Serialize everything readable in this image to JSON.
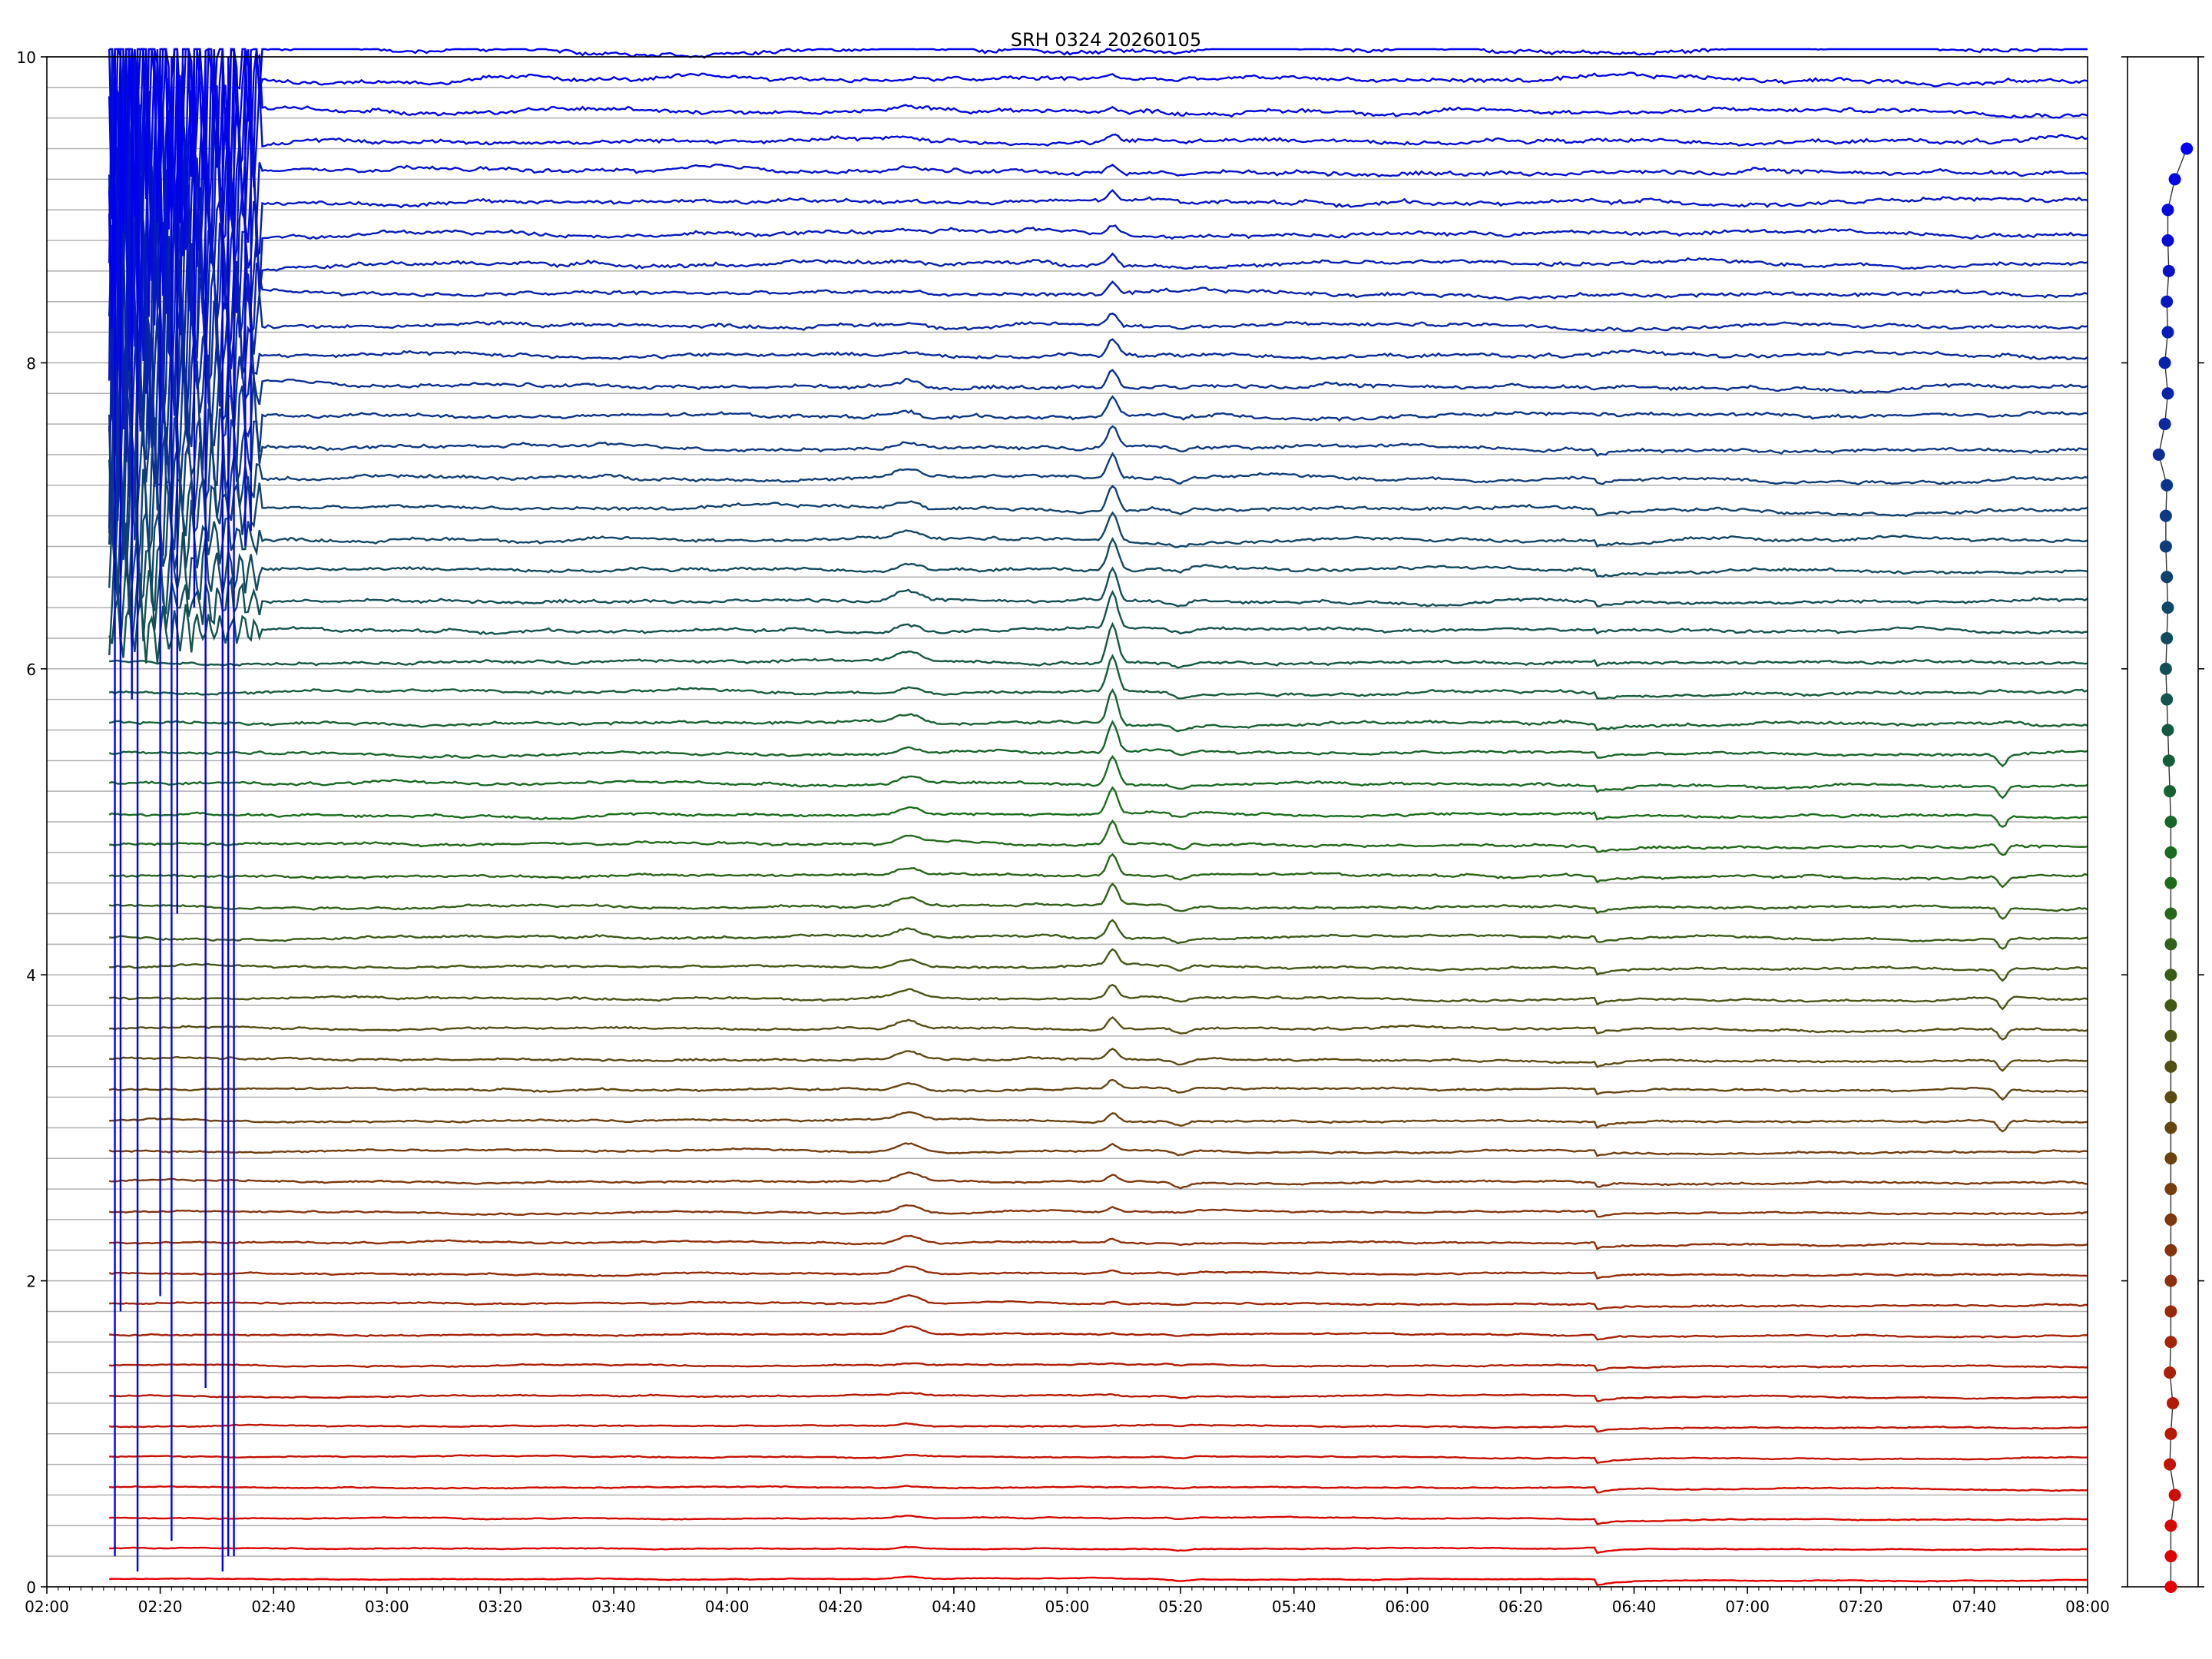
{
  "chart_data": [
    {
      "type": "line",
      "title": "SRH 0324 20260105",
      "xlabel": "",
      "ylabel": "",
      "xlim": [
        "02:00",
        "08:00"
      ],
      "ylim": [
        0,
        10
      ],
      "x_ticks": [
        "02:00",
        "02:20",
        "02:40",
        "03:00",
        "03:20",
        "03:40",
        "04:00",
        "04:20",
        "04:40",
        "05:00",
        "05:20",
        "05:40",
        "06:00",
        "06:20",
        "06:40",
        "07:00",
        "07:20",
        "07:40",
        "08:00"
      ],
      "y_ticks": [
        "0",
        "2",
        "4",
        "6",
        "8",
        "10"
      ],
      "grid": "horizontal baseline per trace",
      "num_traces": 51,
      "trace_spacing": 0.2,
      "trace_start": "02:11",
      "trace_end": "08:00",
      "color_gradient": [
        "#e60000",
        "#1a6e1a",
        "#0000ee"
      ],
      "common_features": [
        {
          "time": "04:32",
          "label": "small bump in mid traces"
        },
        {
          "time": "05:08",
          "label": "sharp peak, largest in traces near 6"
        },
        {
          "time": "05:20",
          "label": "small dip"
        },
        {
          "time": "06:33",
          "label": "step down in all lower traces"
        },
        {
          "time": "07:45",
          "label": "dip in traces near 3-5"
        }
      ]
    },
    {
      "type": "scatter",
      "title": "",
      "ylim": [
        0,
        10
      ],
      "points_y": [
        0,
        0.2,
        0.4,
        0.6,
        0.8,
        1.0,
        1.2,
        1.4,
        1.6,
        1.8,
        2.0,
        2.2,
        2.4,
        2.6,
        2.8,
        3.0,
        3.2,
        3.4,
        3.6,
        3.8,
        4.0,
        4.2,
        4.4,
        4.6,
        4.8,
        5.0,
        5.2,
        5.4,
        5.6,
        5.8,
        6.0,
        6.2,
        6.4,
        6.6,
        6.8,
        7.0,
        7.2,
        7.4,
        7.6,
        7.8,
        8.0,
        8.2,
        8.4,
        8.6,
        8.8,
        9.0,
        9.2,
        9.4
      ],
      "points_x": [
        0.4,
        0.4,
        0.4,
        0.6,
        0.35,
        0.4,
        0.5,
        0.35,
        0.4,
        0.4,
        0.4,
        0.4,
        0.4,
        0.4,
        0.4,
        0.4,
        0.4,
        0.4,
        0.4,
        0.4,
        0.4,
        0.4,
        0.4,
        0.4,
        0.4,
        0.4,
        0.35,
        0.3,
        0.25,
        0.2,
        0.15,
        0.2,
        0.25,
        0.2,
        0.15,
        0.15,
        0.2,
        -0.2,
        0.1,
        0.25,
        0.1,
        0.25,
        0.2,
        0.3,
        0.25,
        0.25,
        0.6,
        1.2
      ],
      "color_gradient": [
        "#e60000",
        "#1a6e1a",
        "#0000ee"
      ]
    }
  ]
}
